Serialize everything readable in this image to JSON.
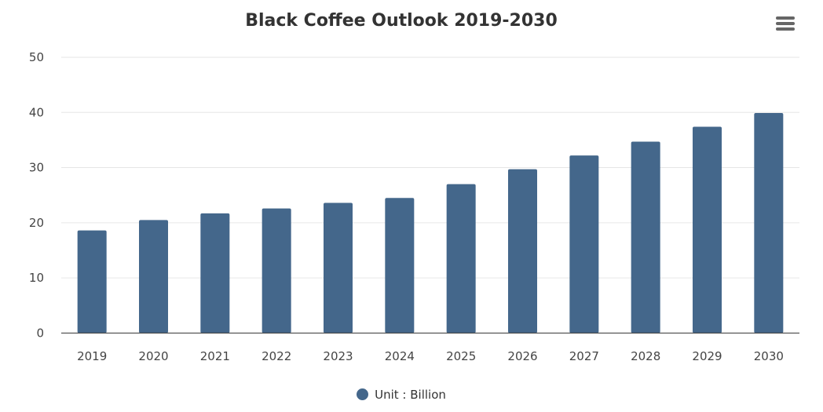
{
  "chart_data": {
    "type": "bar",
    "title": "Black Coffee Outlook 2019-2030",
    "categories": [
      "2019",
      "2020",
      "2021",
      "2022",
      "2023",
      "2024",
      "2025",
      "2026",
      "2027",
      "2028",
      "2029",
      "2030"
    ],
    "series": [
      {
        "name": "Unit : Billion",
        "values": [
          18.6,
          20.5,
          21.7,
          22.6,
          23.6,
          24.5,
          27.0,
          29.7,
          32.2,
          34.7,
          37.4,
          39.9
        ],
        "color": "#44678b"
      }
    ],
    "xlabel": "",
    "ylabel": "",
    "ylim": [
      0,
      50
    ],
    "yticks": [
      0,
      10,
      20,
      30,
      40,
      50
    ],
    "grid": true,
    "legend": "bottom-center"
  },
  "menu_icon": "hamburger-menu-icon"
}
